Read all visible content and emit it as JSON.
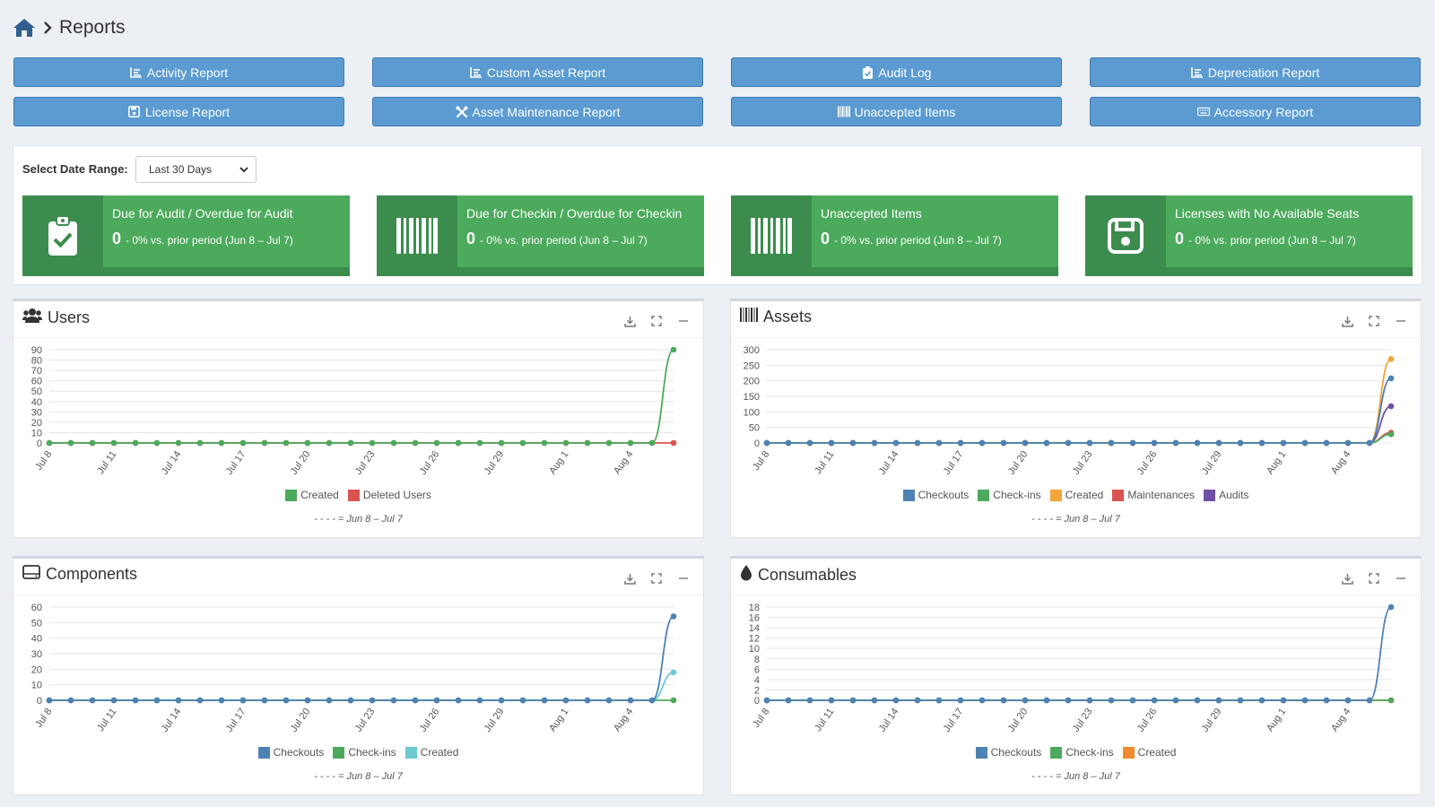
{
  "header": {
    "title": "Reports"
  },
  "report_buttons": [
    {
      "label": "Activity Report",
      "icon": "list-chart-icon"
    },
    {
      "label": "Custom Asset Report",
      "icon": "list-chart-icon"
    },
    {
      "label": "Audit Log",
      "icon": "clipboard-check-icon"
    },
    {
      "label": "Depreciation Report",
      "icon": "list-chart-icon"
    },
    {
      "label": "License Report",
      "icon": "floppy-disk-icon"
    },
    {
      "label": "Asset Maintenance Report",
      "icon": "tools-icon"
    },
    {
      "label": "Unaccepted Items",
      "icon": "barcode-icon"
    },
    {
      "label": "Accessory Report",
      "icon": "keyboard-icon"
    }
  ],
  "date_range": {
    "label": "Select Date Range:",
    "selected": "Last 30 Days"
  },
  "summary_tiles": [
    {
      "title": "Due for Audit / Overdue for Audit",
      "value": "0",
      "comparison": "- 0% vs. prior period (Jun 8 – Jul 7)",
      "icon": "clipboard-check-icon"
    },
    {
      "title": "Due for Checkin / Overdue for Checkin",
      "value": "0",
      "comparison": "- 0% vs. prior period (Jun 8 – Jul 7)",
      "icon": "barcode-icon"
    },
    {
      "title": "Unaccepted Items",
      "value": "0",
      "comparison": "- 0% vs. prior period (Jun 8 – Jul 7)",
      "icon": "barcode-icon"
    },
    {
      "title": "Licenses with No Available Seats",
      "value": "0",
      "comparison": "- 0% vs. prior period (Jun 8 – Jul 7)",
      "icon": "floppy-disk-icon"
    }
  ],
  "colors": {
    "primary_button": "#5b9bd1",
    "tile_green": "#4caa5c",
    "tile_green_dark": "#3c8c4d",
    "blue": "#4e81b4",
    "green": "#4caa5c",
    "red": "#d9534f",
    "orange": "#f0a43a",
    "purple": "#6f4fa8",
    "teal": "#6cc9cf",
    "deep_orange": "#f28a2e"
  },
  "chart_data": [
    {
      "type": "line",
      "title": "Users",
      "icon": "users-icon",
      "x": [
        "Jul 8",
        "Jul 9",
        "Jul 10",
        "Jul 11",
        "Jul 12",
        "Jul 13",
        "Jul 14",
        "Jul 15",
        "Jul 16",
        "Jul 17",
        "Jul 18",
        "Jul 19",
        "Jul 20",
        "Jul 21",
        "Jul 22",
        "Jul 23",
        "Jul 24",
        "Jul 25",
        "Jul 26",
        "Jul 27",
        "Jul 28",
        "Jul 29",
        "Jul 30",
        "Jul 31",
        "Aug 1",
        "Aug 2",
        "Aug 3",
        "Aug 4",
        "Aug 5",
        "Aug 6"
      ],
      "x_tick_labels": [
        "Jul 8",
        "Jul 11",
        "Jul 14",
        "Jul 17",
        "Jul 20",
        "Jul 23",
        "Jul 26",
        "Jul 29",
        "Aug 1",
        "Aug 4"
      ],
      "y_ticks": [
        0,
        10,
        20,
        30,
        40,
        50,
        60,
        70,
        80,
        90
      ],
      "ylim": [
        0,
        90
      ],
      "series": [
        {
          "name": "Created",
          "color": "#4caa5c",
          "values": [
            0,
            0,
            0,
            0,
            0,
            0,
            0,
            0,
            0,
            0,
            0,
            0,
            0,
            0,
            0,
            0,
            0,
            0,
            0,
            0,
            0,
            0,
            0,
            0,
            0,
            0,
            0,
            0,
            0,
            90
          ]
        },
        {
          "name": "Deleted Users",
          "color": "#d9534f",
          "values": [
            0,
            0,
            0,
            0,
            0,
            0,
            0,
            0,
            0,
            0,
            0,
            0,
            0,
            0,
            0,
            0,
            0,
            0,
            0,
            0,
            0,
            0,
            0,
            0,
            0,
            0,
            0,
            0,
            0,
            0
          ]
        }
      ],
      "compare_note": "Jun 8 – Jul 7"
    },
    {
      "type": "line",
      "title": "Assets",
      "icon": "barcode-icon",
      "x": [
        "Jul 8",
        "Jul 9",
        "Jul 10",
        "Jul 11",
        "Jul 12",
        "Jul 13",
        "Jul 14",
        "Jul 15",
        "Jul 16",
        "Jul 17",
        "Jul 18",
        "Jul 19",
        "Jul 20",
        "Jul 21",
        "Jul 22",
        "Jul 23",
        "Jul 24",
        "Jul 25",
        "Jul 26",
        "Jul 27",
        "Jul 28",
        "Jul 29",
        "Jul 30",
        "Jul 31",
        "Aug 1",
        "Aug 2",
        "Aug 3",
        "Aug 4",
        "Aug 5",
        "Aug 6"
      ],
      "x_tick_labels": [
        "Jul 8",
        "Jul 11",
        "Jul 14",
        "Jul 17",
        "Jul 20",
        "Jul 23",
        "Jul 26",
        "Jul 29",
        "Aug 1",
        "Aug 4"
      ],
      "y_ticks": [
        0,
        50,
        100,
        150,
        200,
        250,
        300
      ],
      "ylim": [
        0,
        300
      ],
      "series": [
        {
          "name": "Checkouts",
          "color": "#4e81b4",
          "values": [
            0,
            0,
            0,
            0,
            0,
            0,
            0,
            0,
            0,
            0,
            0,
            0,
            0,
            0,
            0,
            0,
            0,
            0,
            0,
            0,
            0,
            0,
            0,
            0,
            0,
            0,
            0,
            0,
            0,
            208
          ]
        },
        {
          "name": "Check-ins",
          "color": "#4caa5c",
          "values": [
            0,
            0,
            0,
            0,
            0,
            0,
            0,
            0,
            0,
            0,
            0,
            0,
            0,
            0,
            0,
            0,
            0,
            0,
            0,
            0,
            0,
            0,
            0,
            0,
            0,
            0,
            0,
            0,
            0,
            28
          ]
        },
        {
          "name": "Created",
          "color": "#f0a43a",
          "values": [
            0,
            0,
            0,
            0,
            0,
            0,
            0,
            0,
            0,
            0,
            0,
            0,
            0,
            0,
            0,
            0,
            0,
            0,
            0,
            0,
            0,
            0,
            0,
            0,
            0,
            0,
            0,
            0,
            0,
            270
          ]
        },
        {
          "name": "Maintenances",
          "color": "#d9534f",
          "values": [
            0,
            0,
            0,
            0,
            0,
            0,
            0,
            0,
            0,
            0,
            0,
            0,
            0,
            0,
            0,
            0,
            0,
            0,
            0,
            0,
            0,
            0,
            0,
            0,
            0,
            0,
            0,
            0,
            0,
            33
          ]
        },
        {
          "name": "Audits",
          "color": "#6f4fa8",
          "values": [
            0,
            0,
            0,
            0,
            0,
            0,
            0,
            0,
            0,
            0,
            0,
            0,
            0,
            0,
            0,
            0,
            0,
            0,
            0,
            0,
            0,
            0,
            0,
            0,
            0,
            0,
            0,
            0,
            0,
            118
          ]
        }
      ],
      "compare_note": "Jun 8 – Jul 7"
    },
    {
      "type": "line",
      "title": "Components",
      "icon": "hdd-icon",
      "x": [
        "Jul 8",
        "Jul 9",
        "Jul 10",
        "Jul 11",
        "Jul 12",
        "Jul 13",
        "Jul 14",
        "Jul 15",
        "Jul 16",
        "Jul 17",
        "Jul 18",
        "Jul 19",
        "Jul 20",
        "Jul 21",
        "Jul 22",
        "Jul 23",
        "Jul 24",
        "Jul 25",
        "Jul 26",
        "Jul 27",
        "Jul 28",
        "Jul 29",
        "Jul 30",
        "Jul 31",
        "Aug 1",
        "Aug 2",
        "Aug 3",
        "Aug 4",
        "Aug 5",
        "Aug 6"
      ],
      "x_tick_labels": [
        "Jul 8",
        "Jul 11",
        "Jul 14",
        "Jul 17",
        "Jul 20",
        "Jul 23",
        "Jul 26",
        "Jul 29",
        "Aug 1",
        "Aug 4"
      ],
      "y_ticks": [
        0,
        10,
        20,
        30,
        40,
        50,
        60
      ],
      "ylim": [
        0,
        60
      ],
      "series": [
        {
          "name": "Checkouts",
          "color": "#4e81b4",
          "values": [
            0,
            0,
            0,
            0,
            0,
            0,
            0,
            0,
            0,
            0,
            0,
            0,
            0,
            0,
            0,
            0,
            0,
            0,
            0,
            0,
            0,
            0,
            0,
            0,
            0,
            0,
            0,
            0,
            0,
            54
          ]
        },
        {
          "name": "Check-ins",
          "color": "#4caa5c",
          "values": [
            0,
            0,
            0,
            0,
            0,
            0,
            0,
            0,
            0,
            0,
            0,
            0,
            0,
            0,
            0,
            0,
            0,
            0,
            0,
            0,
            0,
            0,
            0,
            0,
            0,
            0,
            0,
            0,
            0,
            0
          ]
        },
        {
          "name": "Created",
          "color": "#6cc9cf",
          "values": [
            0,
            0,
            0,
            0,
            0,
            0,
            0,
            0,
            0,
            0,
            0,
            0,
            0,
            0,
            0,
            0,
            0,
            0,
            0,
            0,
            0,
            0,
            0,
            0,
            0,
            0,
            0,
            0,
            0,
            18
          ]
        }
      ],
      "compare_note": "Jun 8 – Jul 7"
    },
    {
      "type": "line",
      "title": "Consumables",
      "icon": "droplet-icon",
      "x": [
        "Jul 8",
        "Jul 9",
        "Jul 10",
        "Jul 11",
        "Jul 12",
        "Jul 13",
        "Jul 14",
        "Jul 15",
        "Jul 16",
        "Jul 17",
        "Jul 18",
        "Jul 19",
        "Jul 20",
        "Jul 21",
        "Jul 22",
        "Jul 23",
        "Jul 24",
        "Jul 25",
        "Jul 26",
        "Jul 27",
        "Jul 28",
        "Jul 29",
        "Jul 30",
        "Jul 31",
        "Aug 1",
        "Aug 2",
        "Aug 3",
        "Aug 4",
        "Aug 5",
        "Aug 6"
      ],
      "x_tick_labels": [
        "Jul 8",
        "Jul 11",
        "Jul 14",
        "Jul 17",
        "Jul 20",
        "Jul 23",
        "Jul 26",
        "Jul 29",
        "Aug 1",
        "Aug 4"
      ],
      "y_ticks": [
        0,
        2,
        4,
        6,
        8,
        10,
        12,
        14,
        16,
        18
      ],
      "ylim": [
        0,
        18
      ],
      "series": [
        {
          "name": "Checkouts",
          "color": "#4e81b4",
          "values": [
            0,
            0,
            0,
            0,
            0,
            0,
            0,
            0,
            0,
            0,
            0,
            0,
            0,
            0,
            0,
            0,
            0,
            0,
            0,
            0,
            0,
            0,
            0,
            0,
            0,
            0,
            0,
            0,
            0,
            18
          ]
        },
        {
          "name": "Check-ins",
          "color": "#4caa5c",
          "values": [
            0,
            0,
            0,
            0,
            0,
            0,
            0,
            0,
            0,
            0,
            0,
            0,
            0,
            0,
            0,
            0,
            0,
            0,
            0,
            0,
            0,
            0,
            0,
            0,
            0,
            0,
            0,
            0,
            0,
            0
          ]
        },
        {
          "name": "Created",
          "color": "#f28a2e",
          "values": [
            0,
            0,
            0,
            0,
            0,
            0,
            0,
            0,
            0,
            0,
            0,
            0,
            0,
            0,
            0,
            0,
            0,
            0,
            0,
            0,
            0,
            0,
            0,
            0,
            0,
            0,
            0,
            0,
            0,
            0
          ]
        }
      ],
      "compare_note": "Jun 8 – Jul 7"
    }
  ]
}
